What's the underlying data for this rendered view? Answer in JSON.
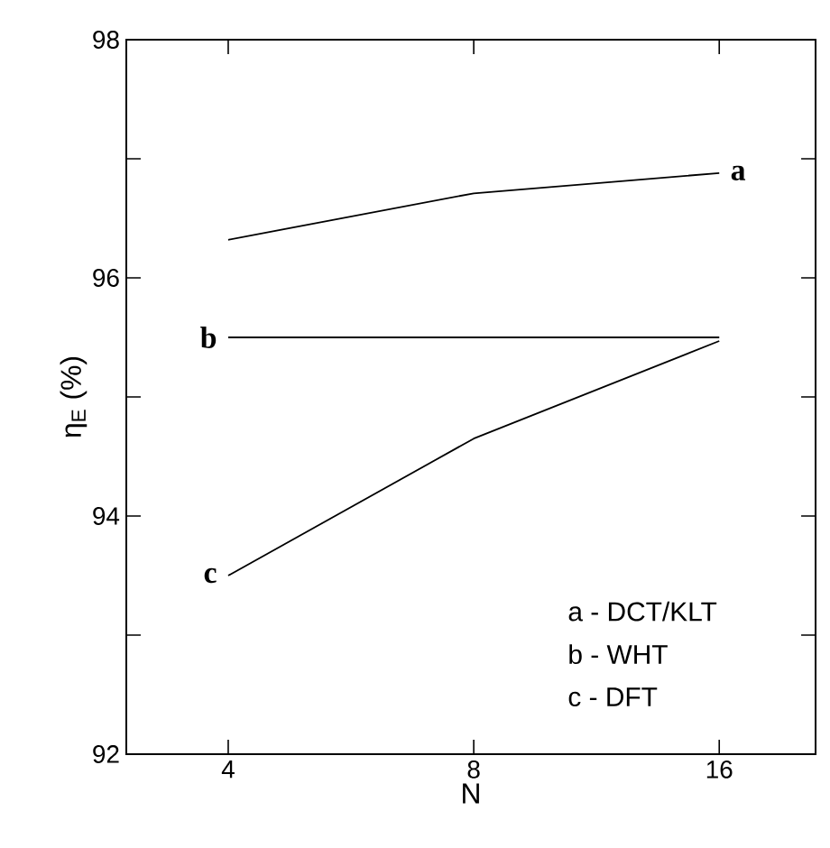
{
  "chart_data": {
    "type": "line",
    "xlabel": "N",
    "ylabel": "η$_{E}$ (%)",
    "log": "x",
    "x": [
      4,
      8,
      16
    ],
    "series": [
      {
        "name": "a",
        "color": "#000000",
        "values": [
          96.32,
          96.71,
          96.88
        ]
      },
      {
        "name": "b",
        "color": "#000000",
        "values": [
          95.5,
          95.5,
          95.5
        ]
      },
      {
        "name": "c",
        "color": "#000000",
        "values": [
          93.5,
          94.65,
          95.47
        ]
      }
    ],
    "xlim": [
      3,
      21
    ],
    "xticks": [
      4,
      8,
      16
    ],
    "ylim": [
      92,
      98
    ],
    "yticks": [
      92,
      {
        "value": 93,
        "label": null
      },
      94,
      {
        "value": 95,
        "label": null
      },
      96,
      {
        "value": 97,
        "label": null
      },
      98
    ],
    "grid": false,
    "marker": "none",
    "line_style": "solid",
    "annotations": [
      "a - DCT/KLT",
      "b - WHT",
      "c - DFT"
    ]
  }
}
